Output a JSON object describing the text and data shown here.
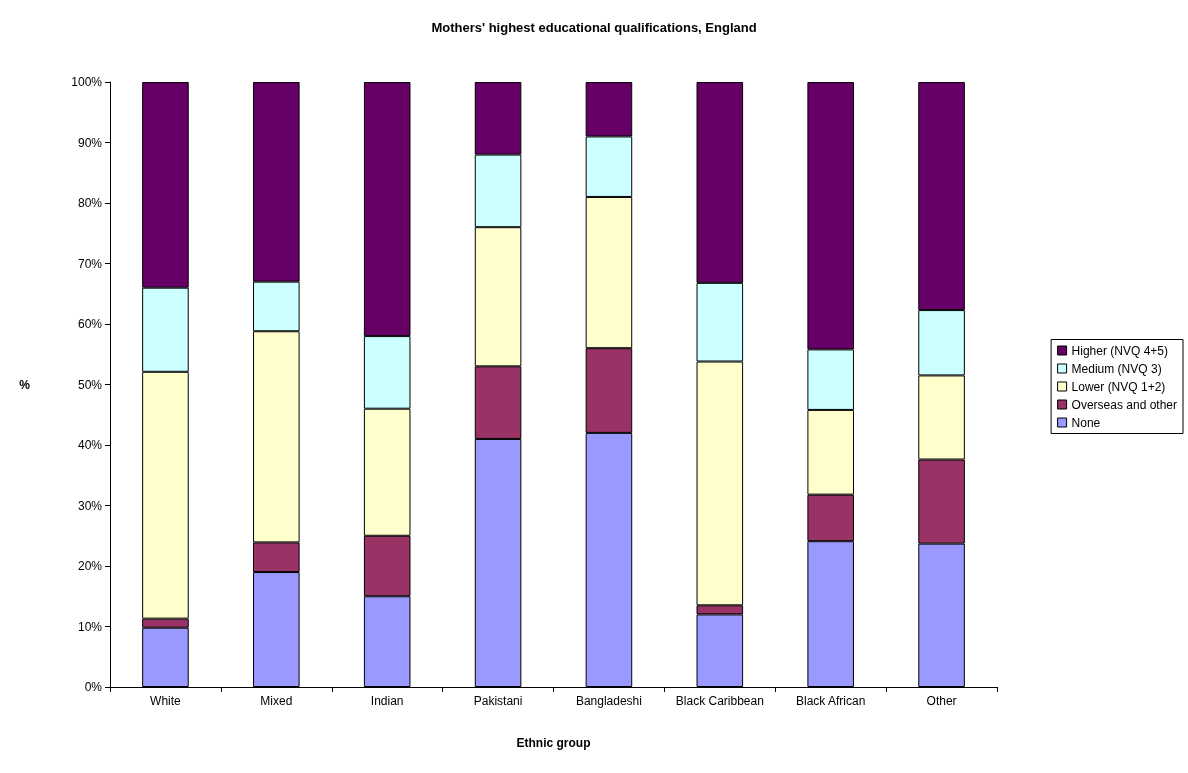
{
  "chart_data": {
    "type": "bar",
    "stacked": true,
    "title": "Mothers' highest educational qualifications, England",
    "xlabel": "Ethnic group",
    "ylabel": "%",
    "categories": [
      "White",
      "Mixed",
      "Indian",
      "Pakistani",
      "Bangladeshi",
      "Black Caribbean",
      "Black African",
      "Other"
    ],
    "series": [
      {
        "name": "None",
        "color": "#9999ff",
        "values": [
          9.8,
          19,
          15,
          41,
          42,
          12,
          24.1,
          23.7
        ]
      },
      {
        "name": "Overseas and other",
        "color": "#993366",
        "values": [
          1.5,
          4.9,
          10,
          12,
          14,
          1.5,
          7.7,
          13.9
        ]
      },
      {
        "name": "Lower (NVQ 1+2)",
        "color": "#ffffcc",
        "values": [
          40.8,
          34.9,
          21,
          23,
          25,
          40.3,
          14,
          13.9
        ]
      },
      {
        "name": "Medium (NVQ 3)",
        "color": "#ccffff",
        "values": [
          13.9,
          8.2,
          12,
          12,
          10,
          13,
          10,
          10.8
        ]
      },
      {
        "name": "Higher (NVQ 4+5)",
        "color": "#660066",
        "values": [
          34,
          33,
          42,
          12,
          9,
          33.2,
          44.2,
          37.7
        ]
      }
    ],
    "ylim": [
      0,
      100
    ],
    "yticks": [
      {
        "value": 0,
        "label": "0%"
      },
      {
        "value": 10,
        "label": "10%"
      },
      {
        "value": 20,
        "label": "20%"
      },
      {
        "value": 30,
        "label": "30%"
      },
      {
        "value": 40,
        "label": "40%"
      },
      {
        "value": 50,
        "label": "50%"
      },
      {
        "value": 60,
        "label": "60%"
      },
      {
        "value": 70,
        "label": "70%"
      },
      {
        "value": 80,
        "label": "80%"
      },
      {
        "value": 90,
        "label": "90%"
      },
      {
        "value": 100,
        "label": "100%"
      }
    ],
    "grid": false,
    "legend": "right"
  }
}
